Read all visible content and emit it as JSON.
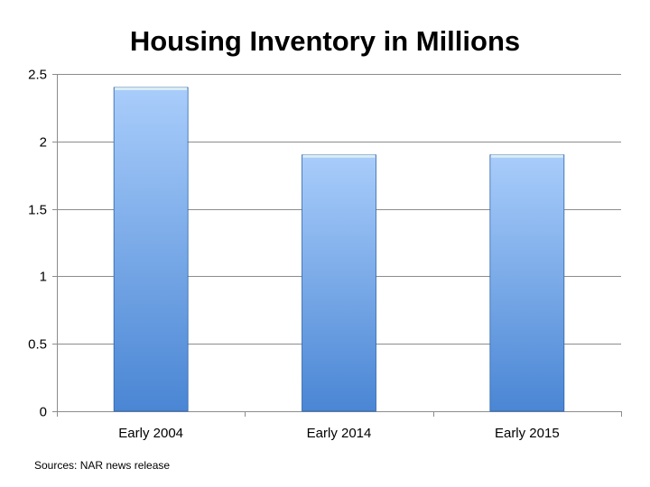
{
  "chart_data": {
    "type": "bar",
    "title": "Housing Inventory in Millions",
    "categories": [
      "Early 2004",
      "Early 2014",
      "Early 2015"
    ],
    "values": [
      2.4,
      1.9,
      1.9
    ],
    "xlabel": "",
    "ylabel": "",
    "ylim": [
      0,
      2.5
    ],
    "yticks": [
      "0",
      "0.5",
      "1",
      "1.5",
      "2",
      "2.5"
    ],
    "grid": true,
    "legend": "none",
    "bar_color_top": "#a9cdfb",
    "bar_color_bottom": "#4a86d4",
    "bar_edge_color": "#2f64a8",
    "bar_cap_color": "#dff2f2",
    "grid_color": "#8c8c8c"
  },
  "note": "Sources:  NAR news release"
}
